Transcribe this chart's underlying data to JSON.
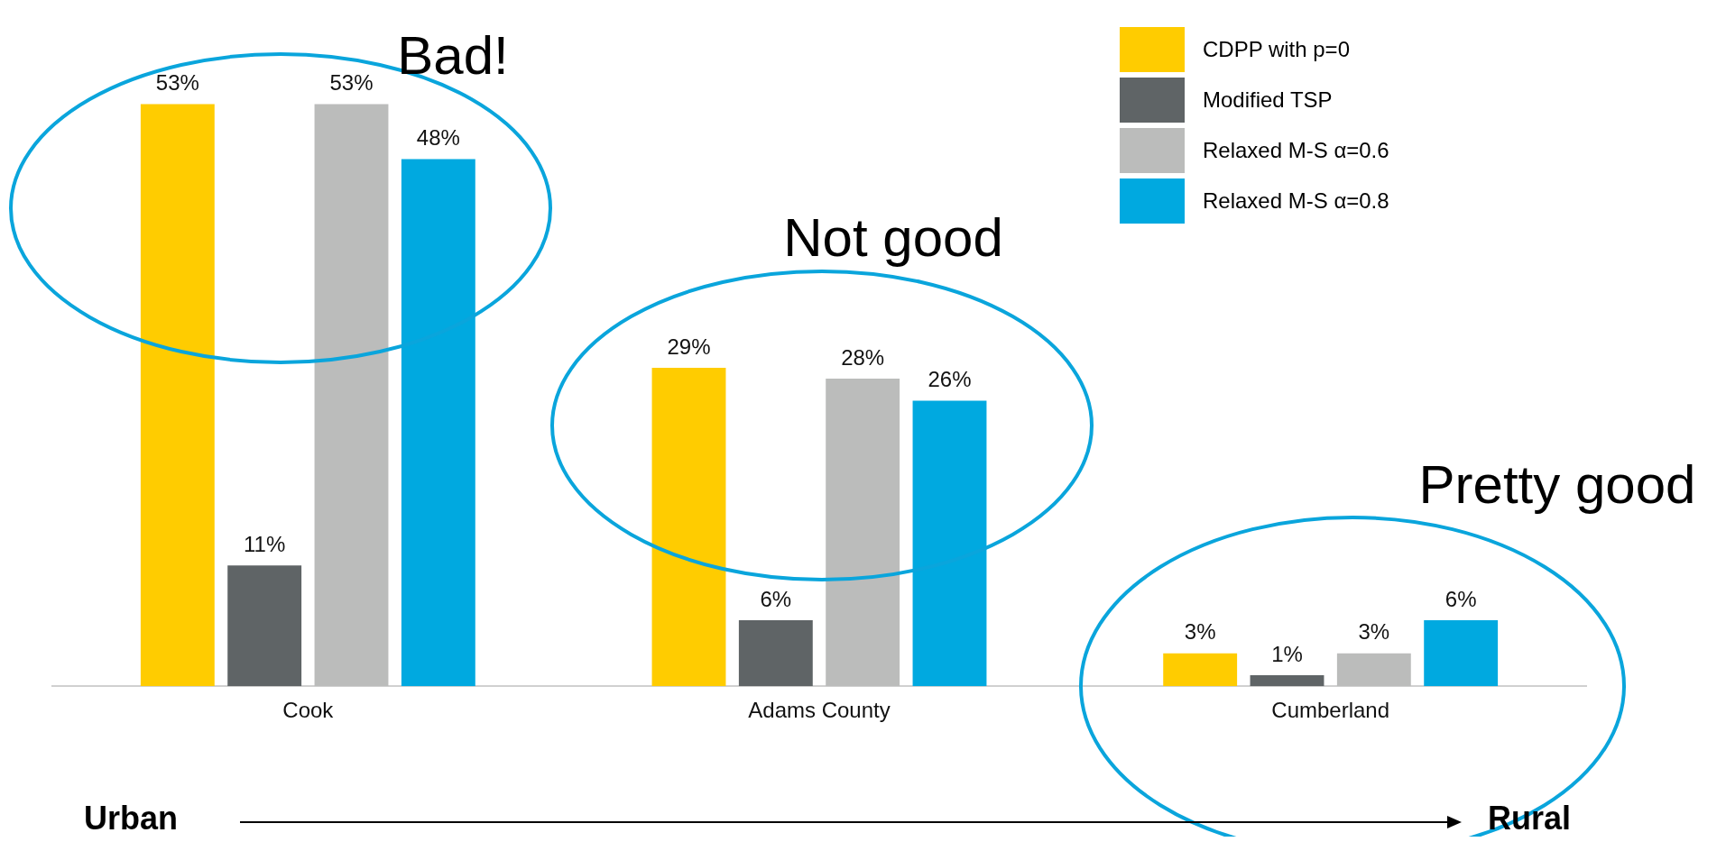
{
  "chart_data": {
    "type": "bar",
    "categories": [
      "Cook",
      "Adams County",
      "Cumberland"
    ],
    "series": [
      {
        "name": "CDPP with p=0",
        "color": "#ffcc00",
        "values": [
          53,
          29,
          3
        ],
        "value_labels": [
          "53%",
          "29%",
          "3%"
        ]
      },
      {
        "name": "Modified TSP",
        "color": "#5f6466",
        "values": [
          11,
          6,
          1
        ],
        "value_labels": [
          "11%",
          "6%",
          "1%"
        ]
      },
      {
        "name": "Relaxed M-S α=0.6",
        "color": "#bbbcbb",
        "values": [
          53,
          28,
          3
        ],
        "value_labels": [
          "53%",
          "28%",
          "3%"
        ]
      },
      {
        "name": "Relaxed M-S α=0.8",
        "color": "#00a9e0",
        "values": [
          48,
          26,
          6
        ],
        "value_labels": [
          "48%",
          "26%",
          "6%"
        ]
      }
    ],
    "annotations": [
      "Bad!",
      "Not good",
      "Pretty good",
      "Urban",
      "Rural"
    ],
    "legend": "top right",
    "grid": false
  }
}
